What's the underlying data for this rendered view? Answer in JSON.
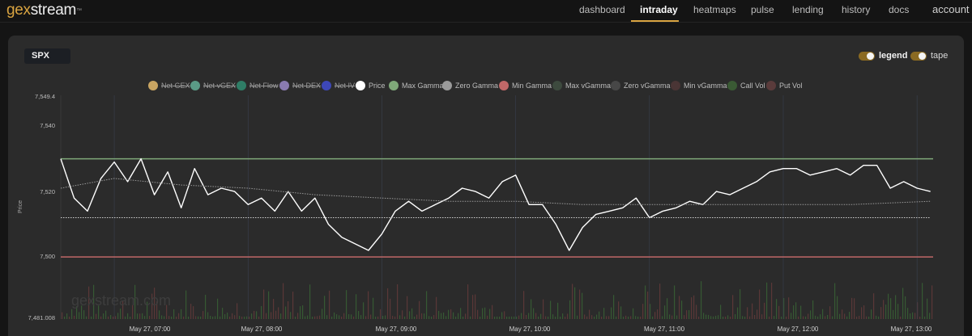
{
  "brand": {
    "part1": "gex",
    "part2": "stream",
    "tm": "™"
  },
  "nav": {
    "items": [
      {
        "label": "dashboard",
        "active": false
      },
      {
        "label": "intraday",
        "active": true
      },
      {
        "label": "heatmaps",
        "active": false
      },
      {
        "label": "pulse",
        "active": false
      },
      {
        "label": "lending",
        "active": false
      },
      {
        "label": "history",
        "active": false
      },
      {
        "label": "docs",
        "active": false
      }
    ],
    "account": "account"
  },
  "ticker": "SPX",
  "toggles": {
    "legend": {
      "label": "legend",
      "on": true
    },
    "tape": {
      "label": "tape",
      "on": true
    }
  },
  "legend": [
    {
      "label": "Net GEX",
      "color": "#c9a562",
      "off": true
    },
    {
      "label": "Net vGEX",
      "color": "#5a9a86",
      "off": true
    },
    {
      "label": "Net Flow",
      "color": "#2f7d66",
      "off": true
    },
    {
      "label": "Net DEX",
      "color": "#8a7bb0",
      "off": true
    },
    {
      "label": "Net IV",
      "color": "#3d47b8",
      "off": true
    },
    {
      "label": "Price",
      "color": "#ffffff",
      "off": false
    },
    {
      "label": "Max Gamma",
      "color": "#7fa879",
      "off": false
    },
    {
      "label": "Zero Gamma",
      "color": "#9a9a9a",
      "off": false
    },
    {
      "label": "Min Gamma",
      "color": "#c06868",
      "off": false
    },
    {
      "label": "Max vGamma",
      "color": "#3d4a3e",
      "off": false
    },
    {
      "label": "Zero vGamma",
      "color": "#474747",
      "off": false
    },
    {
      "label": "Min vGamma",
      "color": "#4a3535",
      "off": false
    },
    {
      "label": "Call Vol",
      "color": "#3a5a34",
      "off": false
    },
    {
      "label": "Put Vol",
      "color": "#5a3b3b",
      "off": false
    }
  ],
  "watermark": "gexstream.com",
  "chart_data": {
    "type": "line",
    "ylabel": "Price",
    "ylim": [
      7481.008,
      7549.4
    ],
    "yticks": [
      "7,549.4",
      "7,540",
      "7,520",
      "7,500",
      "7,481.008"
    ],
    "xticks": [
      "May 27, 07:00",
      "May 27, 08:00",
      "May 27, 09:00",
      "May 27, 10:00",
      "May 27, 11:00",
      "May 27, 12:00",
      "May 27, 13:00"
    ],
    "levels": {
      "max_gamma": 7530,
      "min_gamma": 7500,
      "zero_gamma_close": 7512
    },
    "series": [
      {
        "name": "Price",
        "color": "#ffffff",
        "x_hours": [
          6.6,
          6.7,
          6.8,
          6.9,
          7.0,
          7.1,
          7.2,
          7.3,
          7.4,
          7.5,
          7.6,
          7.7,
          7.8,
          7.9,
          8.0,
          8.1,
          8.2,
          8.3,
          8.4,
          8.5,
          8.6,
          8.7,
          8.8,
          8.9,
          9.0,
          9.1,
          9.2,
          9.3,
          9.4,
          9.5,
          9.6,
          9.7,
          9.8,
          9.9,
          10.0,
          10.1,
          10.2,
          10.3,
          10.4,
          10.5,
          10.6,
          10.7,
          10.8,
          10.9,
          11.0,
          11.1,
          11.2,
          11.3,
          11.4,
          11.5,
          11.6,
          11.7,
          11.8,
          11.9,
          12.0,
          12.1,
          12.2,
          12.3,
          12.4,
          12.5,
          12.6,
          12.7,
          12.8,
          12.9,
          13.0,
          13.1
        ],
        "values": [
          7530,
          7518,
          7514,
          7524,
          7529,
          7523,
          7530,
          7519,
          7526,
          7515,
          7527,
          7519,
          7521,
          7520,
          7516,
          7518,
          7514,
          7520,
          7514,
          7518,
          7510,
          7506,
          7504,
          7502,
          7507,
          7514,
          7517,
          7514,
          7516,
          7518,
          7521,
          7520,
          7518,
          7523,
          7525,
          7516,
          7516,
          7510,
          7502,
          7509,
          7513,
          7514,
          7515,
          7518,
          7512,
          7514,
          7515,
          7517,
          7516,
          7520,
          7519,
          7521,
          7523,
          7526,
          7527,
          7527,
          7525,
          7526,
          7527,
          7525,
          7528,
          7528,
          7521,
          7523,
          7521,
          7520
        ]
      },
      {
        "name": "Zero Gamma",
        "color": "#9a9a9a",
        "x_hours": [
          6.6,
          7.0,
          7.5,
          8.0,
          8.5,
          9.0,
          9.5,
          10.0,
          10.5,
          11.0,
          11.5,
          12.0,
          12.5,
          13.1
        ],
        "values": [
          7521,
          7524,
          7522,
          7521,
          7519,
          7518,
          7517,
          7517,
          7516,
          7516,
          7516,
          7516,
          7516,
          7517
        ]
      },
      {
        "name": "Zero Gamma (secondary)",
        "color": "#cfcfcf",
        "x_hours": [
          6.6,
          7.0,
          8.0,
          9.0,
          10.0,
          11.0,
          12.0,
          13.1
        ],
        "values": [
          7512,
          7512,
          7512,
          7512,
          7512,
          7512,
          7512,
          7512
        ]
      }
    ]
  }
}
